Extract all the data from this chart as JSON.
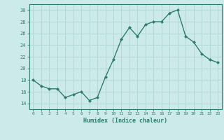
{
  "x": [
    0,
    1,
    2,
    3,
    4,
    5,
    6,
    7,
    8,
    9,
    10,
    11,
    12,
    13,
    14,
    15,
    16,
    17,
    18,
    19,
    20,
    21,
    22,
    23
  ],
  "y": [
    18,
    17,
    16.5,
    16.5,
    15,
    15.5,
    16,
    14.5,
    15,
    18.5,
    21.5,
    25,
    27,
    25.5,
    27.5,
    28,
    28,
    29.5,
    30,
    25.5,
    24.5,
    22.5,
    21.5,
    21
  ],
  "xlabel": "Humidex (Indice chaleur)",
  "ylim": [
    13,
    31
  ],
  "xlim": [
    -0.5,
    23.5
  ],
  "yticks": [
    14,
    16,
    18,
    20,
    22,
    24,
    26,
    28,
    30
  ],
  "xticks": [
    0,
    1,
    2,
    3,
    4,
    5,
    6,
    7,
    8,
    9,
    10,
    11,
    12,
    13,
    14,
    15,
    16,
    17,
    18,
    19,
    20,
    21,
    22,
    23
  ],
  "line_color": "#2e7d6e",
  "marker_color": "#2e7d6e",
  "bg_color": "#cdeaea",
  "grid_color": "#aed4d4",
  "axes_color": "#2e7d6e",
  "tick_label_color": "#2e7d6e",
  "xlabel_color": "#2e7d6e",
  "marker": "D",
  "marker_size": 2.0,
  "line_width": 1.0
}
